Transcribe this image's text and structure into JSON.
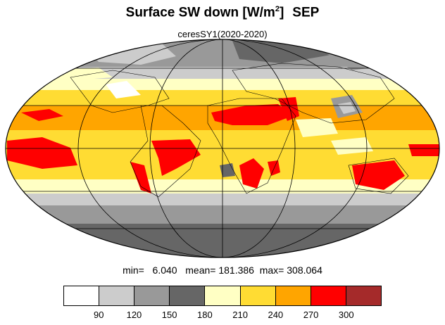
{
  "title": {
    "main": "Surface SW down [W/m",
    "superscript": "2",
    "suffix": "]",
    "month": "SEP"
  },
  "subtitle": "ceresSY1(2020-2020)",
  "stats": {
    "min_label": "min=",
    "min_value": "6.040",
    "mean_label": "mean=",
    "mean_value": "181.386",
    "max_label": "max=",
    "max_value": "308.064"
  },
  "colorbar": {
    "colors": [
      "#ffffff",
      "#cccccc",
      "#999999",
      "#666666",
      "#ffffc4",
      "#ffdc33",
      "#ffa500",
      "#ff0000",
      "#a52a2a"
    ],
    "labels": [
      "90",
      "120",
      "150",
      "180",
      "210",
      "240",
      "270",
      "300"
    ]
  },
  "map": {
    "projection": "mollweide"
  }
}
